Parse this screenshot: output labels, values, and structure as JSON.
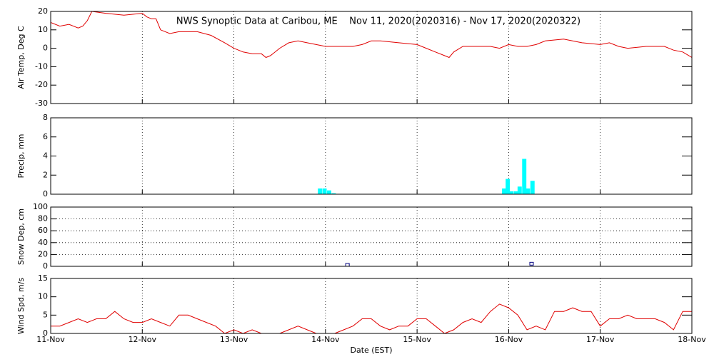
{
  "chart_data": [
    {
      "type": "line",
      "title": "NWS Synoptic Data at Caribou, ME    Nov 11, 2020(2020316) - Nov 17, 2020(2020322)",
      "ylabel": "Air Temp, Deg C",
      "xlim": [
        0,
        7
      ],
      "xticks": [
        0,
        1,
        2,
        3,
        4,
        5,
        6,
        7
      ],
      "xgrid": true,
      "ygrid": false,
      "ylim": [
        -30,
        20
      ],
      "yticks": [
        -30,
        -20,
        -10,
        0,
        10,
        20
      ],
      "series": [
        {
          "name": "Air Temp",
          "color": "#e00000",
          "x": [
            0,
            0.1,
            0.2,
            0.3,
            0.35,
            0.4,
            0.45,
            0.6,
            0.8,
            1.0,
            1.05,
            1.1,
            1.15,
            1.2,
            1.3,
            1.4,
            1.6,
            1.75,
            1.9,
            2.0,
            2.1,
            2.2,
            2.3,
            2.35,
            2.4,
            2.5,
            2.6,
            2.7,
            2.8,
            3.0,
            3.2,
            3.3,
            3.4,
            3.5,
            3.6,
            3.8,
            4.0,
            4.1,
            4.2,
            4.3,
            4.35,
            4.4,
            4.5,
            4.6,
            4.8,
            4.9,
            5.0,
            5.1,
            5.2,
            5.3,
            5.4,
            5.6,
            5.8,
            6.0,
            6.1,
            6.2,
            6.3,
            6.5,
            6.7,
            6.8,
            6.9,
            7.0
          ],
          "values": [
            14,
            12,
            13,
            11,
            12,
            15,
            20,
            19,
            18,
            19,
            17,
            16,
            16,
            10,
            8,
            9,
            9,
            7,
            3,
            0,
            -2,
            -3,
            -3,
            -5,
            -4,
            0,
            3,
            4,
            3,
            1,
            1,
            1,
            2,
            4,
            4,
            3,
            2,
            0,
            -2,
            -4,
            -5,
            -2,
            1,
            1,
            1,
            0,
            2,
            1,
            1,
            2,
            4,
            5,
            3,
            2,
            3,
            1,
            0,
            1,
            1,
            -1,
            -2,
            -5
          ]
        }
      ]
    },
    {
      "type": "bar",
      "ylabel": "Precip, mm",
      "xlim": [
        0,
        7
      ],
      "xticks": [
        0,
        1,
        2,
        3,
        4,
        5,
        6,
        7
      ],
      "xgrid": true,
      "ygrid": false,
      "ylim": [
        0,
        8
      ],
      "yticks": [
        0,
        2,
        4,
        6,
        8
      ],
      "series": [
        {
          "name": "Precip",
          "color": "#00ffff",
          "x": [
            2.94,
            2.99,
            3.04,
            3.09,
            4.95,
            4.99,
            5.03,
            5.08,
            5.12,
            5.17,
            5.21,
            5.26
          ],
          "values": [
            0.6,
            0.6,
            0.4,
            0.1,
            0.6,
            1.6,
            0.3,
            0.3,
            0.8,
            3.7,
            0.6,
            1.4
          ]
        }
      ]
    },
    {
      "type": "scatter",
      "ylabel": "Snow Dep, cm",
      "xlim": [
        0,
        7
      ],
      "xticks": [
        0,
        1,
        2,
        3,
        4,
        5,
        6,
        7
      ],
      "xgrid": true,
      "ygrid": true,
      "ylim": [
        0,
        100
      ],
      "yticks": [
        0,
        20,
        40,
        60,
        80,
        100
      ],
      "series": [
        {
          "name": "Snow Depth",
          "color": "#000080",
          "x": [
            3.24,
            5.25
          ],
          "values": [
            0,
            2
          ]
        }
      ]
    },
    {
      "type": "line",
      "ylabel": "Wind Spd, m/s",
      "xlabel": "Date (EST)",
      "xlim": [
        0,
        7
      ],
      "xticks": [
        {
          "value": 0,
          "label": "11-Nov"
        },
        {
          "value": 1,
          "label": "12-Nov"
        },
        {
          "value": 2,
          "label": "13-Nov"
        },
        {
          "value": 3,
          "label": "14-Nov"
        },
        {
          "value": 4,
          "label": "15-Nov"
        },
        {
          "value": 5,
          "label": "16-Nov"
        },
        {
          "value": 6,
          "label": "17-Nov"
        },
        {
          "value": 7,
          "label": "18-Nov"
        }
      ],
      "xgrid": true,
      "ygrid": false,
      "ylim": [
        0,
        15
      ],
      "yticks": [
        0,
        5,
        10,
        15
      ],
      "series": [
        {
          "name": "Wind Speed",
          "color": "#e00000",
          "x": [
            0,
            0.1,
            0.2,
            0.3,
            0.4,
            0.5,
            0.6,
            0.7,
            0.8,
            0.9,
            1.0,
            1.1,
            1.2,
            1.3,
            1.4,
            1.5,
            1.6,
            1.7,
            1.8,
            1.9,
            2.0,
            2.1,
            2.2,
            2.3,
            2.4,
            2.5,
            2.6,
            2.7,
            2.8,
            2.9,
            3.0,
            3.1,
            3.2,
            3.3,
            3.4,
            3.5,
            3.6,
            3.7,
            3.8,
            3.9,
            4.0,
            4.1,
            4.2,
            4.3,
            4.4,
            4.5,
            4.6,
            4.7,
            4.8,
            4.9,
            5.0,
            5.1,
            5.2,
            5.3,
            5.4,
            5.5,
            5.6,
            5.7,
            5.8,
            5.9,
            6.0,
            6.1,
            6.2,
            6.3,
            6.4,
            6.5,
            6.6,
            6.7,
            6.8,
            6.9,
            7.0
          ],
          "values": [
            2,
            2,
            3,
            4,
            3,
            4,
            4,
            6,
            4,
            3,
            3,
            4,
            3,
            2,
            5,
            5,
            4,
            3,
            2,
            0,
            1,
            0,
            1,
            0,
            0,
            0,
            1,
            2,
            1,
            0,
            0,
            0,
            1,
            2,
            4,
            4,
            2,
            1,
            2,
            2,
            4,
            4,
            2,
            0,
            1,
            3,
            4,
            3,
            6,
            8,
            7,
            5,
            1,
            2,
            1,
            6,
            6,
            7,
            6,
            6,
            2,
            4,
            4,
            5,
            4,
            4,
            4,
            3,
            1,
            6,
            6
          ]
        }
      ]
    }
  ]
}
